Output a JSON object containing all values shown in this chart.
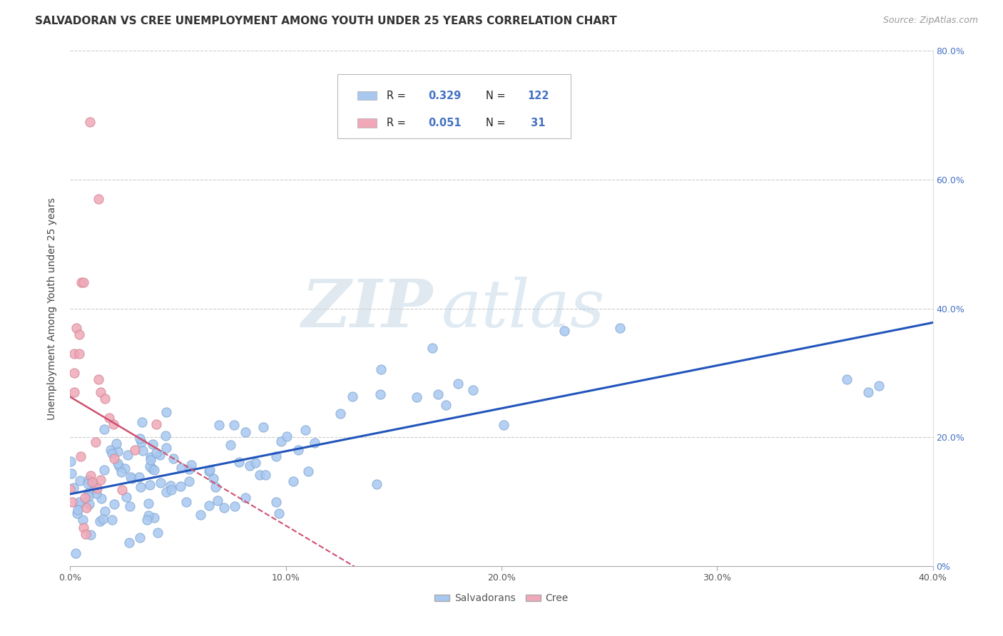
{
  "title": "SALVADORAN VS CREE UNEMPLOYMENT AMONG YOUTH UNDER 25 YEARS CORRELATION CHART",
  "source": "Source: ZipAtlas.com",
  "ylabel": "Unemployment Among Youth under 25 years",
  "xlim": [
    0.0,
    0.4
  ],
  "ylim": [
    0.0,
    0.8
  ],
  "xticks": [
    0.0,
    0.1,
    0.2,
    0.3,
    0.4
  ],
  "yticks": [
    0.0,
    0.2,
    0.4,
    0.6,
    0.8
  ],
  "salvadoran_color": "#a8c8f0",
  "salvadoran_edge": "#85aad4",
  "cree_color": "#f0a8b8",
  "cree_edge": "#d48898",
  "salvadoran_line_color": "#2255bb",
  "cree_line_color": "#d05070",
  "R_salvadoran": 0.329,
  "N_salvadoran": 122,
  "R_cree": 0.051,
  "N_cree": 31,
  "legend_label_salvadoran": "Salvadorans",
  "legend_label_cree": "Cree",
  "watermark_zip": "ZIP",
  "watermark_atlas": "atlas",
  "title_fontsize": 11,
  "source_fontsize": 9,
  "grid_color": "#cccccc",
  "background_color": "#ffffff"
}
